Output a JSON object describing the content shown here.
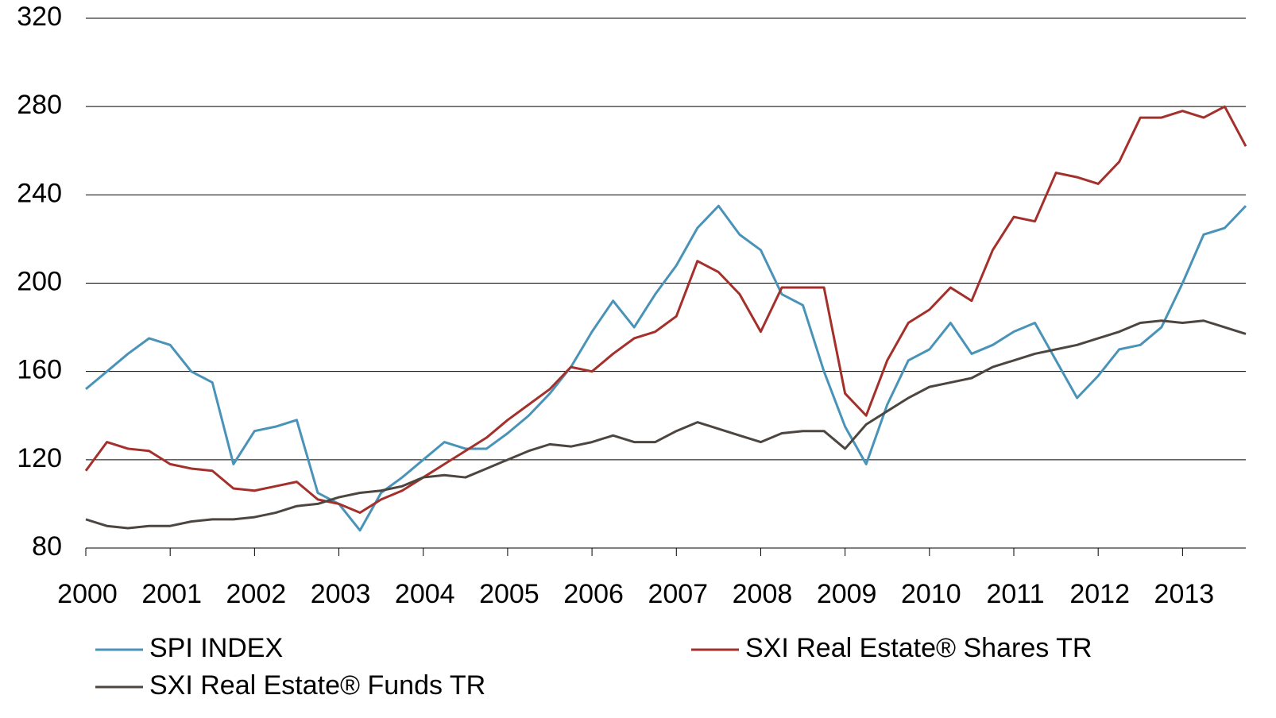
{
  "chart_data": {
    "type": "line",
    "x": [
      2000,
      2000.25,
      2000.5,
      2000.75,
      2001,
      2001.25,
      2001.5,
      2001.75,
      2002,
      2002.25,
      2002.5,
      2002.75,
      2003,
      2003.25,
      2003.5,
      2003.75,
      2004,
      2004.25,
      2004.5,
      2004.75,
      2005,
      2005.25,
      2005.5,
      2005.75,
      2006,
      2006.25,
      2006.5,
      2006.75,
      2007,
      2007.25,
      2007.5,
      2007.75,
      2008,
      2008.25,
      2008.5,
      2008.75,
      2009,
      2009.25,
      2009.5,
      2009.75,
      2010,
      2010.25,
      2010.5,
      2010.75,
      2011,
      2011.25,
      2011.5,
      2011.75,
      2012,
      2012.25,
      2012.5,
      2012.75,
      2013,
      2013.25,
      2013.5,
      2013.75
    ],
    "series": [
      {
        "name": "SPI INDEX",
        "color": "#4a93b8",
        "values": [
          152,
          160,
          168,
          175,
          172,
          160,
          155,
          118,
          133,
          135,
          138,
          105,
          100,
          88,
          105,
          112,
          120,
          128,
          125,
          125,
          132,
          140,
          150,
          162,
          178,
          192,
          180,
          195,
          208,
          225,
          235,
          222,
          215,
          195,
          190,
          160,
          135,
          118,
          145,
          165,
          170,
          182,
          168,
          172,
          178,
          182,
          165,
          148,
          158,
          170,
          172,
          180,
          200,
          222,
          225,
          235
        ]
      },
      {
        "name": "SXI Real Estate® Shares TR",
        "color": "#a4302c",
        "values": [
          115,
          128,
          125,
          124,
          118,
          116,
          115,
          107,
          106,
          108,
          110,
          102,
          100,
          96,
          102,
          106,
          112,
          118,
          124,
          130,
          138,
          145,
          152,
          162,
          160,
          168,
          175,
          178,
          185,
          210,
          205,
          195,
          178,
          198,
          198,
          198,
          150,
          140,
          165,
          182,
          188,
          198,
          192,
          215,
          230,
          228,
          250,
          248,
          245,
          255,
          275,
          275,
          278,
          275,
          280,
          262
        ]
      },
      {
        "name": "SXI Real Estate® Funds TR",
        "color": "#4d4640",
        "values": [
          93,
          90,
          89,
          90,
          90,
          92,
          93,
          93,
          94,
          96,
          99,
          100,
          103,
          105,
          106,
          108,
          112,
          113,
          112,
          116,
          120,
          124,
          127,
          126,
          128,
          131,
          128,
          128,
          133,
          137,
          134,
          131,
          128,
          132,
          133,
          133,
          125,
          136,
          142,
          148,
          153,
          155,
          157,
          162,
          165,
          168,
          170,
          172,
          175,
          178,
          182,
          183,
          182,
          183,
          180,
          177
        ]
      }
    ],
    "xlim": [
      2000,
      2013.75
    ],
    "xticks": [
      2000,
      2001,
      2002,
      2003,
      2004,
      2005,
      2006,
      2007,
      2008,
      2009,
      2010,
      2011,
      2012,
      2013
    ],
    "ylim": [
      80,
      320
    ],
    "yticks": [
      80,
      120,
      160,
      200,
      240,
      280,
      320
    ],
    "grid": true
  }
}
